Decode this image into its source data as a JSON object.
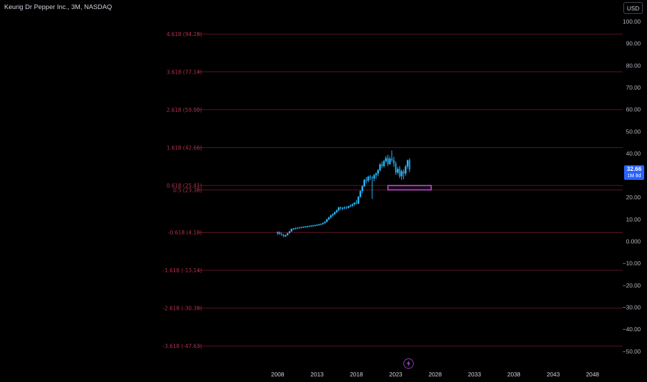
{
  "header": {
    "symbol_title": "Keurig Dr Pepper Inc., 3M, NASDAQ",
    "currency": "USD"
  },
  "last_price": {
    "value": "32.66",
    "countdown": "1M 8d"
  },
  "colors": {
    "background": "#000000",
    "fib_line": "#5c1424",
    "fib_label": "#b0304c",
    "candle": "#29b6f6",
    "zone": "#c64bd6",
    "badge": "#2962ff",
    "axis_text": "#b2b5be"
  },
  "icons": {
    "bolt": "lightning-bolt-icon"
  },
  "chart_data": {
    "type": "candlestick",
    "x_range": [
      2008,
      2050
    ],
    "ylim": [
      -52,
      104
    ],
    "x_ticks": [
      "2008",
      "2013",
      "2018",
      "2023",
      "2028",
      "2033",
      "2038",
      "2043",
      "2048"
    ],
    "y_ticks": [
      "100.00",
      "90.00",
      "80.00",
      "70.00",
      "60.00",
      "50.00",
      "40.00",
      "30.00",
      "20.00",
      "10.00",
      "0.000",
      "−10.00",
      "−20.00",
      "−30.00",
      "−40.00",
      "−50.00"
    ],
    "fib_levels": [
      {
        "label": "4.618 (94.28)",
        "value": 94.28
      },
      {
        "label": "3.618 (77.14)",
        "value": 77.14
      },
      {
        "label": "2.618 (59.90)",
        "value": 59.9
      },
      {
        "label": "1.618 (42.66)",
        "value": 42.66
      },
      {
        "label": "0.618 (25.41)",
        "value": 25.41
      },
      {
        "label": "0.5 (23.38)",
        "value": 23.38
      },
      {
        "label": "-0.618 (4.10)",
        "value": 4.1
      },
      {
        "label": "-1.618 (-13.14)",
        "value": -13.14
      },
      {
        "label": "-2.618 (-30.38)",
        "value": -30.38
      },
      {
        "label": "-3.618 (-47.63)",
        "value": -47.63
      }
    ],
    "zone": {
      "x_start": 2022.0,
      "x_end": 2027.5,
      "y_low": 23.4,
      "y_high": 25.4
    },
    "candles": [
      {
        "t": 2008.0,
        "o": 3.6,
        "h": 4.6,
        "l": 2.9,
        "c": 4.1
      },
      {
        "t": 2008.25,
        "o": 4.1,
        "h": 4.5,
        "l": 3.0,
        "c": 3.3
      },
      {
        "t": 2008.5,
        "o": 3.3,
        "h": 4.0,
        "l": 2.6,
        "c": 2.9
      },
      {
        "t": 2008.75,
        "o": 2.9,
        "h": 3.4,
        "l": 1.9,
        "c": 2.3
      },
      {
        "t": 2009.0,
        "o": 2.3,
        "h": 3.1,
        "l": 2.0,
        "c": 2.8
      },
      {
        "t": 2009.25,
        "o": 2.8,
        "h": 3.9,
        "l": 2.7,
        "c": 3.7
      },
      {
        "t": 2009.5,
        "o": 3.7,
        "h": 4.8,
        "l": 3.5,
        "c": 4.5
      },
      {
        "t": 2009.75,
        "o": 4.5,
        "h": 5.9,
        "l": 4.3,
        "c": 5.6
      },
      {
        "t": 2010.0,
        "o": 5.6,
        "h": 6.1,
        "l": 5.1,
        "c": 5.8
      },
      {
        "t": 2010.25,
        "o": 5.8,
        "h": 6.3,
        "l": 5.4,
        "c": 6.0
      },
      {
        "t": 2010.5,
        "o": 6.0,
        "h": 6.4,
        "l": 5.6,
        "c": 6.2
      },
      {
        "t": 2010.75,
        "o": 6.2,
        "h": 6.6,
        "l": 5.9,
        "c": 6.3
      },
      {
        "t": 2011.0,
        "o": 6.3,
        "h": 6.7,
        "l": 6.0,
        "c": 6.4
      },
      {
        "t": 2011.25,
        "o": 6.4,
        "h": 6.9,
        "l": 6.1,
        "c": 6.6
      },
      {
        "t": 2011.5,
        "o": 6.6,
        "h": 7.0,
        "l": 6.2,
        "c": 6.7
      },
      {
        "t": 2011.75,
        "o": 6.7,
        "h": 7.1,
        "l": 6.3,
        "c": 6.8
      },
      {
        "t": 2012.0,
        "o": 6.8,
        "h": 7.2,
        "l": 6.5,
        "c": 7.0
      },
      {
        "t": 2012.25,
        "o": 7.0,
        "h": 7.4,
        "l": 6.6,
        "c": 7.1
      },
      {
        "t": 2012.5,
        "o": 7.1,
        "h": 7.5,
        "l": 6.7,
        "c": 7.2
      },
      {
        "t": 2012.75,
        "o": 7.2,
        "h": 7.6,
        "l": 6.8,
        "c": 7.4
      },
      {
        "t": 2013.0,
        "o": 7.4,
        "h": 7.8,
        "l": 7.0,
        "c": 7.5
      },
      {
        "t": 2013.25,
        "o": 7.5,
        "h": 8.0,
        "l": 7.1,
        "c": 7.7
      },
      {
        "t": 2013.5,
        "o": 7.7,
        "h": 8.2,
        "l": 7.3,
        "c": 7.9
      },
      {
        "t": 2013.75,
        "o": 7.9,
        "h": 8.6,
        "l": 7.6,
        "c": 8.3
      },
      {
        "t": 2014.0,
        "o": 8.3,
        "h": 9.2,
        "l": 8.0,
        "c": 8.9
      },
      {
        "t": 2014.25,
        "o": 8.9,
        "h": 10.3,
        "l": 8.6,
        "c": 10.0
      },
      {
        "t": 2014.5,
        "o": 10.0,
        "h": 11.2,
        "l": 9.6,
        "c": 10.9
      },
      {
        "t": 2014.75,
        "o": 10.9,
        "h": 12.1,
        "l": 10.4,
        "c": 11.8
      },
      {
        "t": 2015.0,
        "o": 11.8,
        "h": 12.8,
        "l": 11.2,
        "c": 12.4
      },
      {
        "t": 2015.25,
        "o": 12.4,
        "h": 13.6,
        "l": 11.9,
        "c": 13.3
      },
      {
        "t": 2015.5,
        "o": 13.3,
        "h": 14.5,
        "l": 12.8,
        "c": 14.1
      },
      {
        "t": 2015.75,
        "o": 14.1,
        "h": 15.8,
        "l": 13.6,
        "c": 15.4
      },
      {
        "t": 2016.0,
        "o": 15.4,
        "h": 15.9,
        "l": 14.4,
        "c": 15.0
      },
      {
        "t": 2016.25,
        "o": 15.0,
        "h": 15.6,
        "l": 14.2,
        "c": 15.2
      },
      {
        "t": 2016.5,
        "o": 15.2,
        "h": 15.9,
        "l": 14.6,
        "c": 15.5
      },
      {
        "t": 2016.75,
        "o": 15.5,
        "h": 16.0,
        "l": 14.7,
        "c": 15.3
      },
      {
        "t": 2017.0,
        "o": 15.3,
        "h": 16.2,
        "l": 14.9,
        "c": 16.0
      },
      {
        "t": 2017.25,
        "o": 16.0,
        "h": 16.8,
        "l": 15.5,
        "c": 16.3
      },
      {
        "t": 2017.5,
        "o": 16.3,
        "h": 17.2,
        "l": 15.7,
        "c": 16.9
      },
      {
        "t": 2017.75,
        "o": 16.9,
        "h": 17.8,
        "l": 16.2,
        "c": 17.6
      },
      {
        "t": 2018.0,
        "o": 17.6,
        "h": 18.9,
        "l": 16.8,
        "c": 17.2
      },
      {
        "t": 2018.25,
        "o": 17.2,
        "h": 20.6,
        "l": 16.9,
        "c": 20.3
      },
      {
        "t": 2018.5,
        "o": 20.3,
        "h": 23.2,
        "l": 19.8,
        "c": 22.9
      },
      {
        "t": 2018.75,
        "o": 22.9,
        "h": 25.6,
        "l": 21.8,
        "c": 25.1
      },
      {
        "t": 2019.0,
        "o": 25.1,
        "h": 28.4,
        "l": 24.6,
        "c": 28.0
      },
      {
        "t": 2019.25,
        "o": 28.0,
        "h": 29.2,
        "l": 26.4,
        "c": 27.6
      },
      {
        "t": 2019.5,
        "o": 27.6,
        "h": 29.9,
        "l": 26.9,
        "c": 29.4
      },
      {
        "t": 2019.75,
        "o": 29.4,
        "h": 30.2,
        "l": 27.8,
        "c": 28.9
      },
      {
        "t": 2020.0,
        "o": 28.9,
        "h": 29.8,
        "l": 19.3,
        "c": 28.6
      },
      {
        "t": 2020.25,
        "o": 28.6,
        "h": 30.7,
        "l": 27.3,
        "c": 30.1
      },
      {
        "t": 2020.5,
        "o": 30.1,
        "h": 31.4,
        "l": 28.4,
        "c": 30.8
      },
      {
        "t": 2020.75,
        "o": 30.8,
        "h": 32.9,
        "l": 29.6,
        "c": 32.4
      },
      {
        "t": 2021.0,
        "o": 32.4,
        "h": 35.6,
        "l": 31.8,
        "c": 35.0
      },
      {
        "t": 2021.25,
        "o": 35.0,
        "h": 36.3,
        "l": 33.4,
        "c": 34.3
      },
      {
        "t": 2021.5,
        "o": 34.3,
        "h": 37.1,
        "l": 33.6,
        "c": 36.5
      },
      {
        "t": 2021.75,
        "o": 36.5,
        "h": 38.8,
        "l": 35.8,
        "c": 37.9
      },
      {
        "t": 2022.0,
        "o": 37.9,
        "h": 39.4,
        "l": 34.3,
        "c": 35.2
      },
      {
        "t": 2022.25,
        "o": 35.2,
        "h": 38.6,
        "l": 34.8,
        "c": 37.6
      },
      {
        "t": 2022.5,
        "o": 37.6,
        "h": 41.3,
        "l": 36.2,
        "c": 37.0
      },
      {
        "t": 2022.75,
        "o": 37.0,
        "h": 38.5,
        "l": 33.9,
        "c": 35.4
      },
      {
        "t": 2023.0,
        "o": 35.4,
        "h": 36.4,
        "l": 30.2,
        "c": 31.3
      },
      {
        "t": 2023.25,
        "o": 31.3,
        "h": 33.8,
        "l": 30.6,
        "c": 32.9
      },
      {
        "t": 2023.5,
        "o": 32.9,
        "h": 34.2,
        "l": 28.8,
        "c": 29.6
      },
      {
        "t": 2023.75,
        "o": 29.6,
        "h": 32.6,
        "l": 28.0,
        "c": 31.9
      },
      {
        "t": 2024.0,
        "o": 31.9,
        "h": 32.7,
        "l": 28.3,
        "c": 30.9
      },
      {
        "t": 2024.25,
        "o": 30.9,
        "h": 34.8,
        "l": 29.9,
        "c": 34.1
      },
      {
        "t": 2024.5,
        "o": 34.1,
        "h": 37.2,
        "l": 33.0,
        "c": 36.9
      },
      {
        "t": 2024.75,
        "o": 36.9,
        "h": 37.8,
        "l": 31.5,
        "c": 32.66
      }
    ]
  }
}
